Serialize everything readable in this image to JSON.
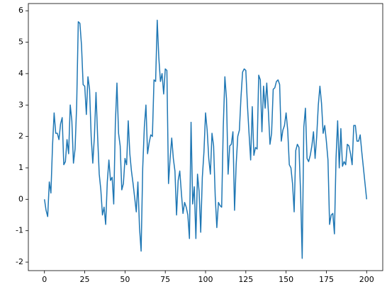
{
  "chart_data": {
    "type": "line",
    "x": [
      0,
      1,
      2,
      3,
      4,
      5,
      6,
      7,
      8,
      9,
      10,
      11,
      12,
      13,
      14,
      15,
      16,
      17,
      18,
      19,
      20,
      21,
      22,
      23,
      24,
      25,
      26,
      27,
      28,
      29,
      30,
      31,
      32,
      33,
      34,
      35,
      36,
      37,
      38,
      39,
      40,
      41,
      42,
      43,
      44,
      45,
      46,
      47,
      48,
      49,
      50,
      51,
      52,
      53,
      54,
      55,
      56,
      57,
      58,
      59,
      60,
      61,
      62,
      63,
      64,
      65,
      66,
      67,
      68,
      69,
      70,
      71,
      72,
      73,
      74,
      75,
      76,
      77,
      78,
      79,
      80,
      81,
      82,
      83,
      84,
      85,
      86,
      87,
      88,
      89,
      90,
      91,
      92,
      93,
      94,
      95,
      96,
      97,
      98,
      99,
      100,
      101,
      102,
      103,
      104,
      105,
      106,
      107,
      108,
      109,
      110,
      111,
      112,
      113,
      114,
      115,
      116,
      117,
      118,
      119,
      120,
      121,
      122,
      123,
      124,
      125,
      126,
      127,
      128,
      129,
      130,
      131,
      132,
      133,
      134,
      135,
      136,
      137,
      138,
      139,
      140,
      141,
      142,
      143,
      144,
      145,
      146,
      147,
      148,
      149,
      150,
      151,
      152,
      153,
      154,
      155,
      156,
      157,
      158,
      159,
      160,
      161,
      162,
      163,
      164,
      165,
      166,
      167,
      168,
      169,
      170,
      171,
      172,
      173,
      174,
      175,
      176,
      177,
      178,
      179,
      180,
      181,
      182,
      183,
      184,
      185,
      186,
      187,
      188,
      189,
      190,
      191,
      192,
      193,
      194,
      195,
      196,
      197,
      198,
      199,
      200
    ],
    "series": [
      {
        "color": "#1f77b4",
        "values": [
          0,
          -0.35,
          -0.55,
          0.55,
          0.2,
          1.7,
          2.75,
          2.1,
          2.1,
          1.9,
          2.4,
          2.6,
          1.1,
          1.2,
          1.9,
          1.45,
          3.0,
          2.5,
          1.15,
          1.6,
          3.0,
          5.65,
          5.6,
          4.9,
          3.65,
          3.6,
          2.7,
          3.9,
          3.5,
          2.0,
          1.15,
          2.0,
          3.4,
          2.0,
          0.8,
          0.3,
          -0.5,
          -0.25,
          -0.8,
          0.55,
          1.25,
          0.6,
          0.7,
          -0.15,
          2.4,
          3.7,
          2.1,
          1.7,
          0.3,
          0.5,
          1.3,
          1.1,
          2.5,
          1.45,
          0.9,
          0.5,
          0.05,
          -0.4,
          0.55,
          -0.9,
          -1.65,
          1.0,
          2.3,
          3.0,
          1.45,
          1.8,
          2.05,
          2.0,
          3.8,
          3.75,
          5.7,
          4.5,
          3.75,
          4.0,
          3.35,
          4.15,
          4.1,
          0.5,
          1.3,
          1.95,
          1.3,
          0.9,
          -0.5,
          0.6,
          0.9,
          0.2,
          -0.45,
          -0.1,
          -0.25,
          -0.5,
          -1.25,
          2.45,
          -0.15,
          0.4,
          -1.25,
          0.8,
          0.25,
          -1.05,
          0.7,
          1.5,
          2.75,
          2.2,
          1.3,
          0.8,
          2.1,
          1.7,
          0.1,
          -0.9,
          -0.1,
          -0.2,
          -0.25,
          2.3,
          3.9,
          3.2,
          0.8,
          1.7,
          1.75,
          2.15,
          -0.35,
          1.1,
          2.0,
          2.2,
          3.25,
          4.05,
          4.15,
          4.1,
          3.0,
          2.1,
          1.25,
          2.95,
          1.4,
          1.65,
          1.6,
          3.95,
          3.8,
          2.15,
          3.6,
          2.9,
          3.7,
          2.8,
          1.75,
          2.1,
          3.5,
          3.55,
          3.75,
          3.8,
          3.65,
          1.85,
          2.2,
          2.35,
          2.75,
          2.2,
          1.1,
          1.0,
          0.5,
          -0.4,
          1.55,
          1.75,
          1.65,
          0.2,
          -1.88,
          2.3,
          2.9,
          1.3,
          1.2,
          1.4,
          1.7,
          2.15,
          1.3,
          2.0,
          3.0,
          3.6,
          3.05,
          2.1,
          2.35,
          1.85,
          1.25,
          -0.8,
          -0.5,
          -0.45,
          -1.1,
          1.3,
          2.5,
          1.0,
          2.25,
          1.05,
          1.2,
          1.1,
          1.75,
          1.7,
          1.45,
          1.1,
          2.35,
          2.35,
          1.85,
          1.85,
          2.05,
          1.5,
          1.0,
          0.5,
          0.0
        ]
      }
    ],
    "xlim": [
      -10,
      210
    ],
    "ylim": [
      -2.27,
      6.23
    ],
    "xticks": [
      0,
      25,
      50,
      75,
      100,
      125,
      150,
      175,
      200
    ],
    "yticks": [
      -2,
      -1,
      0,
      1,
      2,
      3,
      4,
      5,
      6
    ]
  }
}
